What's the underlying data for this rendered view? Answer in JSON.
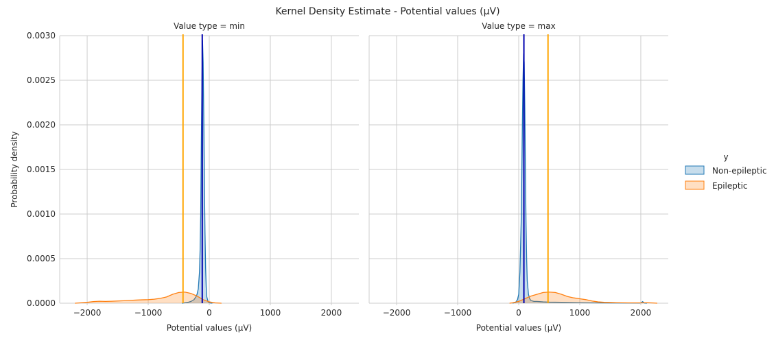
{
  "chart_data": {
    "type": "area",
    "title": "Kernel Density Estimate - Potential values (µV)",
    "ylabel": "Probability density",
    "xlabel": "Potential values (µV)",
    "xlim": [
      -2450,
      2450
    ],
    "ylim": [
      0,
      0.003
    ],
    "xticks": [
      -2000,
      -1000,
      0,
      1000,
      2000
    ],
    "xtick_labels": [
      "−2000",
      "−1000",
      "0",
      "1000",
      "2000"
    ],
    "yticks": [
      0.0,
      0.0005,
      0.001,
      0.0015,
      0.002,
      0.0025,
      0.003
    ],
    "ytick_labels": [
      "0.0000",
      "0.0005",
      "0.0010",
      "0.0015",
      "0.0020",
      "0.0025",
      "0.0030"
    ],
    "grid": true,
    "legend": {
      "title": "y",
      "placement": "right",
      "entries": [
        "Non-epileptic",
        "Epileptic"
      ]
    },
    "colors": {
      "non_epileptic": "#1f77b4",
      "epileptic": "#ff7f0e",
      "non_epileptic_mean_line": "#0000b0",
      "epileptic_mean_line": "#ffa500",
      "grid": "#cccccc",
      "spine": "#cccccc"
    },
    "panels": [
      {
        "title": "Value type = min",
        "series": [
          {
            "name": "Non-epileptic",
            "x": [
              -450,
              -400,
              -350,
              -300,
              -250,
              -220,
              -200,
              -180,
              -160,
              -150,
              -140,
              -130,
              -120,
              -110,
              -100,
              -90,
              -80,
              -70,
              -60,
              -50,
              -40,
              -20,
              0,
              20,
              50
            ],
            "y": [
              0,
              5e-06,
              1e-05,
              2e-05,
              4e-05,
              7e-05,
              0.0001,
              0.00016,
              0.00035,
              0.0006,
              0.001,
              0.0018,
              0.0025,
              0.00295,
              0.0027,
              0.0021,
              0.0014,
              0.0008,
              0.0004,
              0.00018,
              7e-05,
              2e-05,
              5e-06,
              2e-06,
              0
            ]
          },
          {
            "name": "Epileptic",
            "x": [
              -2200,
              -2100,
              -2000,
              -1900,
              -1800,
              -1700,
              -1600,
              -1500,
              -1400,
              -1300,
              -1200,
              -1100,
              -1000,
              -900,
              -800,
              -700,
              -600,
              -500,
              -400,
              -300,
              -200,
              -100,
              0,
              100,
              200
            ],
            "y": [
              0,
              5e-06,
              1e-05,
              1.8e-05,
              2.2e-05,
              2e-05,
              2.2e-05,
              2.5e-05,
              2.8e-05,
              3.2e-05,
              3.5e-05,
              3.8e-05,
              4e-05,
              4.5e-05,
              5.5e-05,
              7e-05,
              0.0001,
              0.00012,
              0.000125,
              0.00011,
              8e-05,
              4e-05,
              1.5e-05,
              4e-06,
              0
            ]
          }
        ],
        "mean_lines": [
          {
            "name": "Epileptic",
            "x": -430
          },
          {
            "name": "Non-epileptic",
            "x": -115
          }
        ]
      },
      {
        "title": "Value type = max",
        "series": [
          {
            "name": "Non-epileptic",
            "x": [
              -100,
              -50,
              -20,
              0,
              20,
              40,
              50,
              60,
              70,
              80,
              90,
              100,
              110,
              120,
              130,
              140,
              160,
              180,
              200,
              250,
              300,
              400,
              500,
              700,
              800,
              1000,
              1500,
              2000,
              2030,
              2060,
              2100
            ],
            "y": [
              0,
              1e-05,
              4e-05,
              0.0001,
              0.00035,
              0.0009,
              0.0014,
              0.002,
              0.0025,
              0.0028,
              0.0027,
              0.0022,
              0.0015,
              0.0009,
              0.0005,
              0.00025,
              0.0001,
              5e-05,
              3e-05,
              2e-05,
              2e-05,
              1.5e-05,
              1.2e-05,
              1e-05,
              8e-06,
              5e-06,
              3e-06,
              2e-06,
              1.8e-05,
              2e-06,
              0
            ]
          },
          {
            "name": "Epileptic",
            "x": [
              -150,
              -100,
              0,
              100,
              200,
              300,
              400,
              500,
              600,
              700,
              800,
              900,
              1000,
              1100,
              1200,
              1300,
              1400,
              1500,
              1600,
              1700,
              1800,
              1900,
              2000,
              2100,
              2200,
              2270
            ],
            "y": [
              0,
              5e-06,
              2e-05,
              5e-05,
              8e-05,
              0.0001,
              0.00012,
              0.000125,
              0.00012,
              0.0001,
              7.5e-05,
              6e-05,
              5e-05,
              4e-05,
              2.5e-05,
              1.5e-05,
              1e-05,
              8e-06,
              6e-06,
              5e-06,
              4e-06,
              4e-06,
              4e-06,
              6e-06,
              3e-06,
              0
            ]
          }
        ],
        "mean_lines": [
          {
            "name": "Non-epileptic",
            "x": 85
          },
          {
            "name": "Epileptic",
            "x": 480
          }
        ]
      }
    ]
  }
}
